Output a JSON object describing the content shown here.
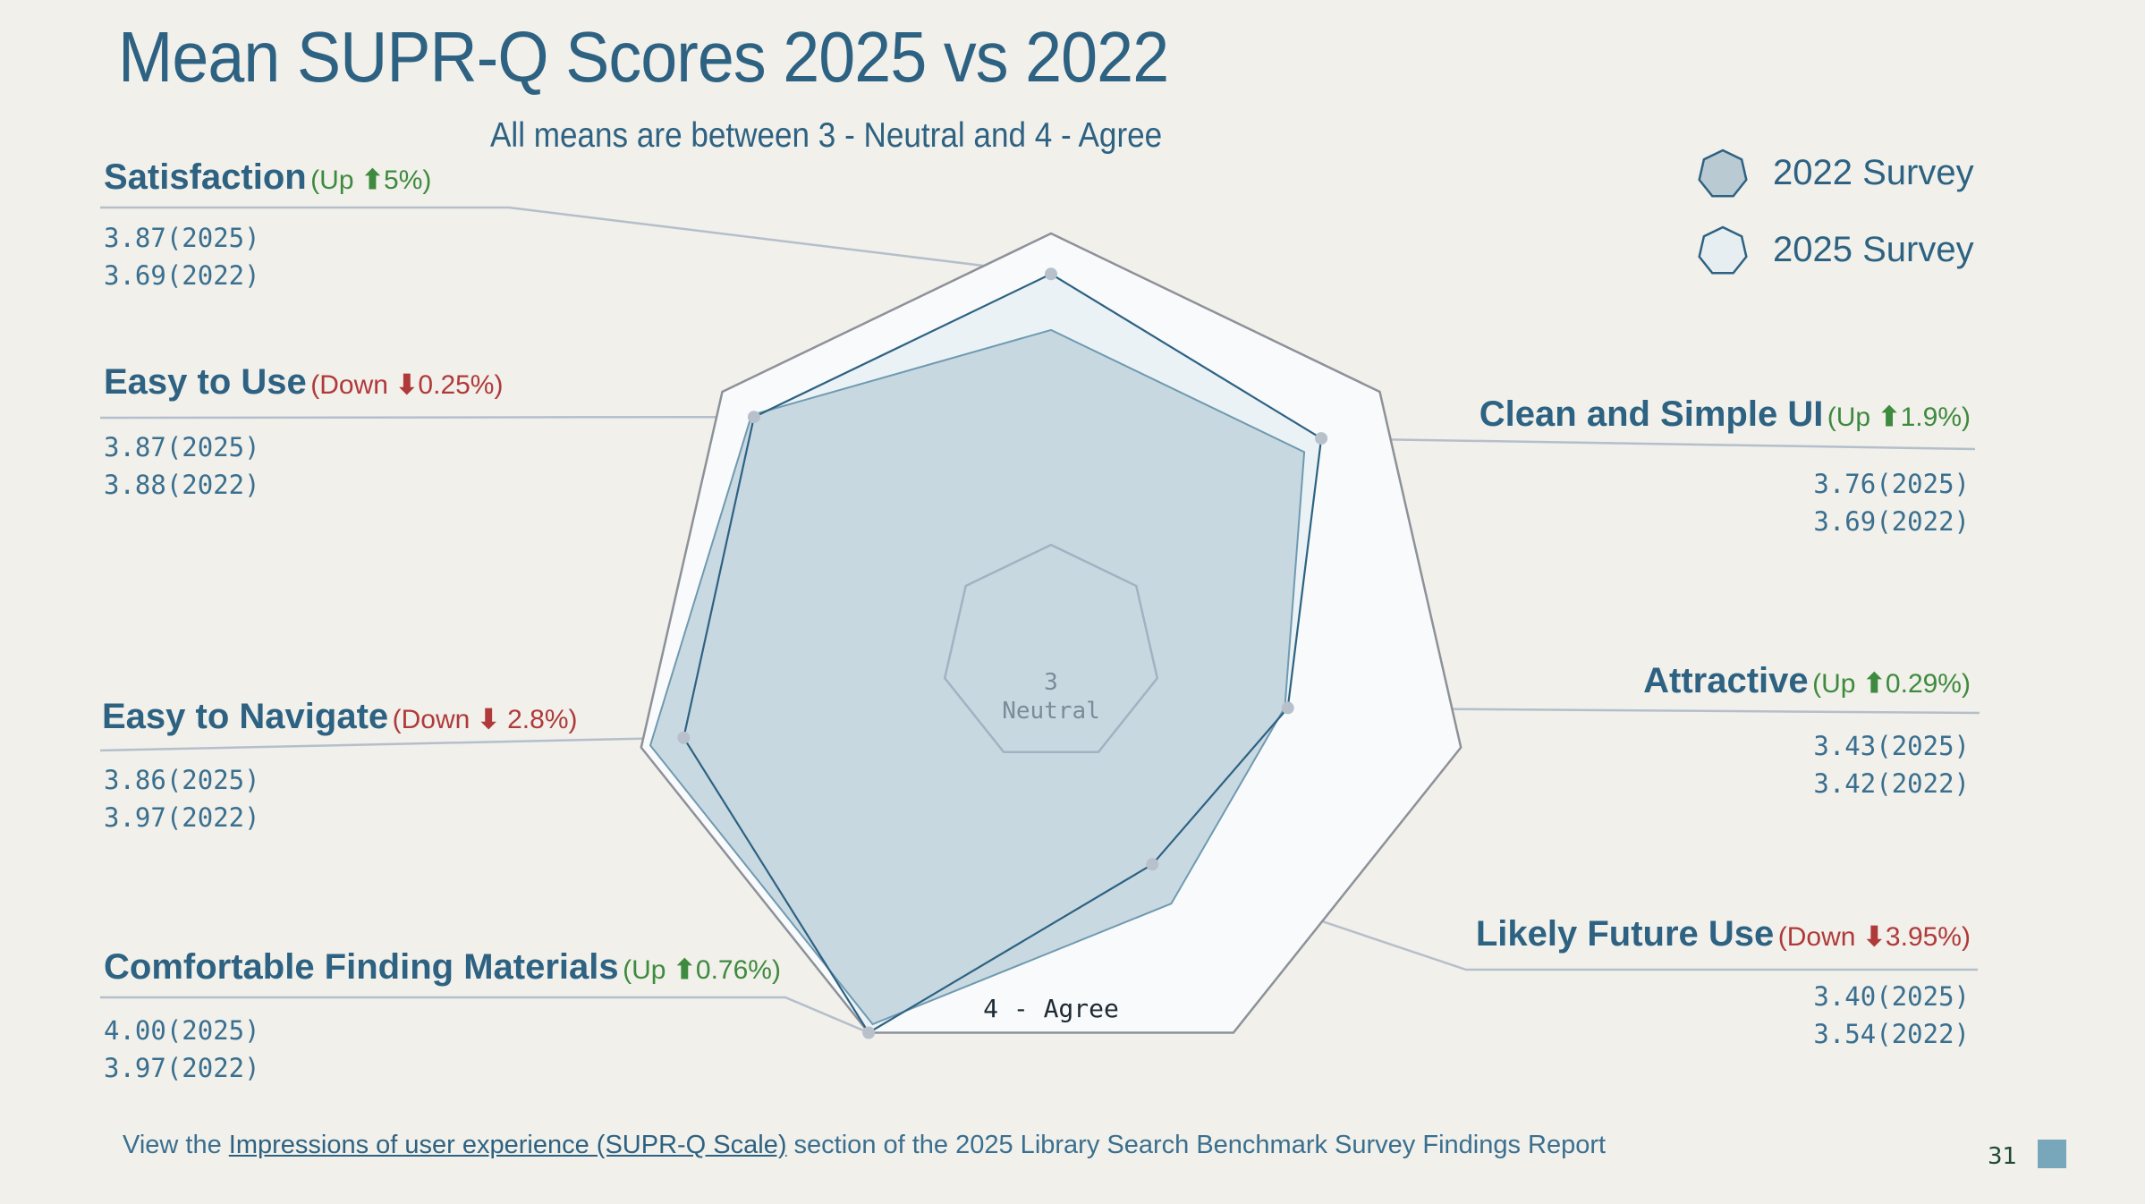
{
  "header": {
    "title": "Mean SUPR-Q Scores 2025 vs 2022",
    "subtitle": "All means are between 3 - Neutral and 4 - Agree"
  },
  "legend": [
    {
      "label": "2022 Survey",
      "fill": "#b9cad2",
      "stroke": "#2e6282"
    },
    {
      "label": "2025 Survey",
      "fill": "#e6eef1",
      "stroke": "#2e6282"
    }
  ],
  "categories": [
    {
      "name": "Satisfaction",
      "direction": "Up",
      "arrow": "⬆",
      "change": "5%",
      "v2025": "3.87",
      "v2022": "3.69",
      "year2025": "(2025)",
      "year2022": "(2022)"
    },
    {
      "name": "Clean and Simple UI",
      "direction": "Up",
      "arrow": "⬆",
      "change": "1.9%",
      "v2025": "3.76",
      "v2022": "3.69",
      "year2025": "(2025)",
      "year2022": "(2022)"
    },
    {
      "name": "Attractive",
      "direction": "Up",
      "arrow": "⬆",
      "change": "0.29%",
      "v2025": "3.43",
      "v2022": "3.42",
      "year2025": "(2025)",
      "year2022": "(2022)"
    },
    {
      "name": "Likely Future Use",
      "direction": "Down",
      "arrow": "⬇",
      "change": "3.95%",
      "v2025": "3.40",
      "v2022": "3.54",
      "year2025": "(2025)",
      "year2022": "(2022)"
    },
    {
      "name": "Comfortable Finding Materials",
      "direction": "Up",
      "arrow": "⬆",
      "change": "0.76%",
      "v2025": "4.00",
      "v2022": "3.97",
      "year2025": "(2025)",
      "year2022": "(2022)"
    },
    {
      "name": "Easy to Navigate",
      "direction": "Down",
      "arrow": "⬇",
      "change": " 2.8%",
      "v2025": "3.86",
      "v2022": "3.97",
      "year2025": "(2025)",
      "year2022": "(2022)"
    },
    {
      "name": "Easy to Use",
      "direction": "Down",
      "arrow": "⬇",
      "change": "0.25%",
      "v2025": "3.87",
      "v2022": "3.88",
      "year2025": "(2025)",
      "year2022": "(2022)"
    }
  ],
  "chart_data": {
    "type": "radar",
    "title": "Mean SUPR-Q Scores 2025 vs 2022",
    "subtitle": "All means are between 3 - Neutral and 4 - Agree",
    "categories": [
      "Satisfaction",
      "Clean and Simple UI",
      "Attractive",
      "Likely Future Use",
      "Comfortable Finding Materials",
      "Easy to Navigate",
      "Easy to Use"
    ],
    "series": [
      {
        "name": "2022 Survey",
        "values": [
          3.69,
          3.69,
          3.42,
          3.54,
          3.97,
          3.97,
          3.88
        ]
      },
      {
        "name": "2025 Survey",
        "values": [
          3.87,
          3.76,
          3.43,
          3.4,
          4.0,
          3.86,
          3.87
        ]
      }
    ],
    "rings": [
      {
        "value": 3,
        "label_value": "3",
        "label_text": "Neutral"
      },
      {
        "value": 4,
        "label_text": "4 - Agree"
      }
    ],
    "range": [
      2.65,
      4
    ],
    "legend_position": "top-right",
    "colors": {
      "series_2022_fill": "#c3d5df",
      "series_2022_stroke": "#6f9ab0",
      "series_2025_fill": "#eaf2f5",
      "series_2025_stroke": "#2e6282",
      "outer_fill": "#f8fafb",
      "outer_stroke": "#8d9199",
      "inner_stroke": "#a0b3c2",
      "leader": "#b4bfcb",
      "dot": "#b7c0cb"
    }
  },
  "footer": {
    "prefix": "View the ",
    "link_text": "Impressions of user experience (SUPR-Q Scale)",
    "suffix": " section of the 2025 Library Search Benchmark Survey Findings Report",
    "page_number": "31"
  }
}
